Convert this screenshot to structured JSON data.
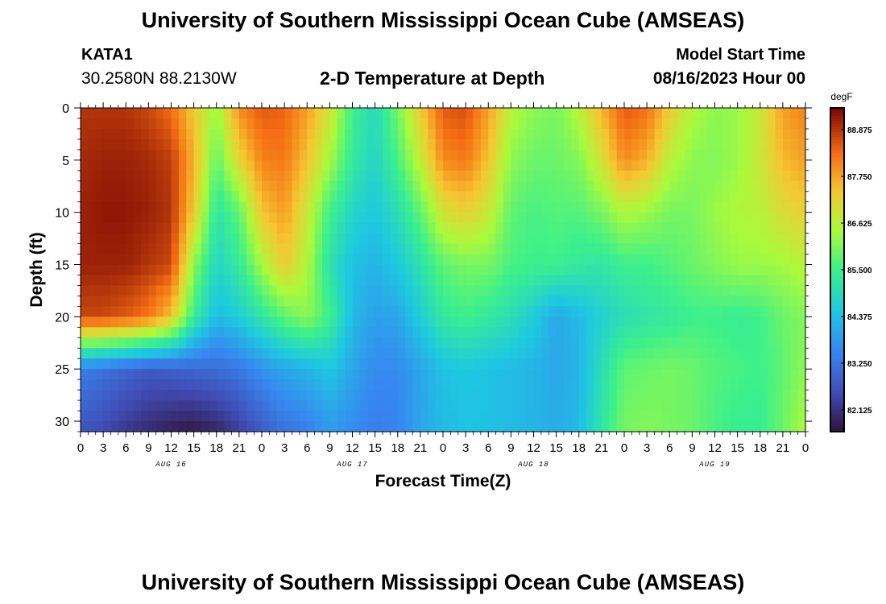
{
  "page": {
    "title_top": "University of Southern Mississippi Ocean Cube (AMSEAS)",
    "title_bottom": "University of Southern Mississippi Ocean Cube (AMSEAS)",
    "station_id": "KATA1",
    "station_coords": "30.2580N  88.2130W",
    "plot_title": "2-D Temperature at Depth",
    "model_start_label": "Model Start Time",
    "model_start_value": "08/16/2023 Hour 00"
  },
  "chart_data": {
    "type": "heatmap",
    "title": "2-D Temperature at Depth",
    "xlabel": "Forecast Time(Z)",
    "ylabel": "Depth (ft)",
    "x_unit": "hours since 08/16/2023 00Z",
    "xlim": [
      0,
      96
    ],
    "ylim": [
      0,
      31
    ],
    "y_inverted": true,
    "x_tick_values": [
      0,
      3,
      6,
      9,
      12,
      15,
      18,
      21,
      24,
      27,
      30,
      33,
      36,
      39,
      42,
      45,
      48,
      51,
      54,
      57,
      60,
      63,
      66,
      69,
      72,
      75,
      78,
      81,
      84,
      87,
      90,
      93,
      96
    ],
    "x_tick_labels": [
      "0",
      "3",
      "6",
      "9",
      "12",
      "15",
      "18",
      "21",
      "0",
      "3",
      "6",
      "9",
      "12",
      "15",
      "18",
      "21",
      "0",
      "3",
      "6",
      "9",
      "12",
      "15",
      "18",
      "21",
      "0",
      "3",
      "6",
      "9",
      "12",
      "15",
      "18",
      "21",
      "0"
    ],
    "y_ticks": [
      0,
      5,
      10,
      15,
      20,
      25,
      30
    ],
    "date_labels": [
      {
        "x": 12,
        "label": "AUG 16"
      },
      {
        "x": 36,
        "label": "AUG 17"
      },
      {
        "x": 60,
        "label": "AUG 18"
      },
      {
        "x": 84,
        "label": "AUG 19"
      }
    ],
    "colorbar": {
      "unit": "degF",
      "vmin": 81.6,
      "vmax": 89.4,
      "tick_values": [
        82.125,
        83.25,
        84.375,
        85.5,
        86.625,
        87.75,
        88.875
      ],
      "tick_labels": [
        "82.125",
        "83.250",
        "84.375",
        "85.500",
        "86.625",
        "87.750",
        "88.875"
      ]
    },
    "grid": {
      "times": [
        0,
        3,
        6,
        9,
        12,
        15,
        18,
        21,
        24,
        27,
        30,
        33,
        36,
        39,
        42,
        45,
        48,
        51,
        54,
        57,
        60,
        63,
        66,
        69,
        72,
        75,
        78,
        81,
        84,
        87,
        90,
        93,
        96
      ],
      "depths": [
        0,
        5,
        10,
        15,
        20,
        25,
        31
      ],
      "values": [
        [
          88.9,
          88.9,
          88.9,
          88.7,
          88.3,
          87.3,
          86.3,
          88.0,
          88.5,
          88.4,
          87.8,
          86.9,
          85.5,
          84.9,
          86.0,
          87.3,
          88.5,
          88.6,
          87.8,
          86.6,
          86.2,
          86.0,
          86.6,
          87.6,
          88.5,
          88.3,
          87.3,
          86.5,
          86.2,
          86.3,
          86.8,
          87.8,
          88.1
        ],
        [
          89.0,
          89.1,
          89.1,
          89.0,
          88.8,
          87.6,
          85.8,
          87.1,
          88.1,
          88.2,
          87.4,
          86.4,
          85.3,
          84.8,
          85.6,
          86.7,
          88.0,
          88.2,
          87.4,
          86.2,
          85.9,
          85.9,
          86.1,
          86.9,
          88.0,
          87.6,
          86.6,
          86.2,
          86.1,
          86.3,
          86.8,
          87.5,
          87.8
        ],
        [
          89.1,
          89.2,
          89.2,
          89.1,
          88.9,
          87.3,
          85.2,
          85.8,
          87.4,
          87.8,
          86.8,
          85.5,
          84.8,
          84.5,
          85.0,
          85.8,
          86.9,
          87.2,
          86.8,
          85.8,
          85.6,
          85.7,
          85.7,
          86.0,
          86.5,
          86.3,
          86.0,
          86.0,
          86.3,
          86.5,
          86.6,
          87.0,
          87.2
        ],
        [
          89.1,
          89.1,
          89.1,
          88.9,
          88.7,
          86.2,
          84.8,
          85.3,
          86.4,
          87.3,
          86.5,
          85.1,
          84.4,
          84.2,
          84.5,
          85.1,
          85.8,
          86.0,
          86.0,
          85.6,
          85.5,
          85.5,
          85.3,
          85.2,
          85.5,
          85.5,
          85.7,
          85.9,
          86.1,
          86.3,
          86.3,
          86.4,
          86.6
        ],
        [
          88.7,
          88.7,
          88.5,
          88.2,
          87.4,
          85.4,
          84.3,
          84.6,
          85.2,
          85.8,
          86.2,
          85.5,
          84.3,
          83.9,
          84.0,
          84.6,
          85.3,
          85.5,
          85.3,
          85.0,
          84.6,
          84.0,
          84.3,
          84.7,
          85.0,
          85.2,
          85.3,
          85.5,
          85.5,
          85.4,
          85.5,
          85.9,
          86.1
        ],
        [
          83.4,
          83.2,
          83.0,
          82.8,
          82.9,
          83.0,
          83.1,
          83.3,
          83.7,
          84.0,
          84.2,
          84.5,
          84.0,
          83.6,
          83.6,
          84.0,
          84.4,
          84.5,
          84.4,
          84.3,
          84.2,
          84.0,
          84.2,
          85.0,
          85.8,
          85.9,
          86.0,
          85.9,
          85.7,
          85.6,
          85.5,
          85.8,
          86.2
        ],
        [
          82.7,
          82.5,
          82.2,
          82.0,
          81.8,
          81.7,
          81.9,
          82.3,
          82.8,
          83.2,
          83.4,
          83.8,
          83.6,
          83.4,
          83.5,
          84.0,
          84.3,
          84.4,
          84.4,
          84.3,
          84.2,
          84.1,
          84.3,
          85.2,
          86.0,
          86.1,
          86.0,
          85.9,
          85.6,
          85.4,
          85.4,
          85.9,
          86.5
        ]
      ]
    }
  }
}
